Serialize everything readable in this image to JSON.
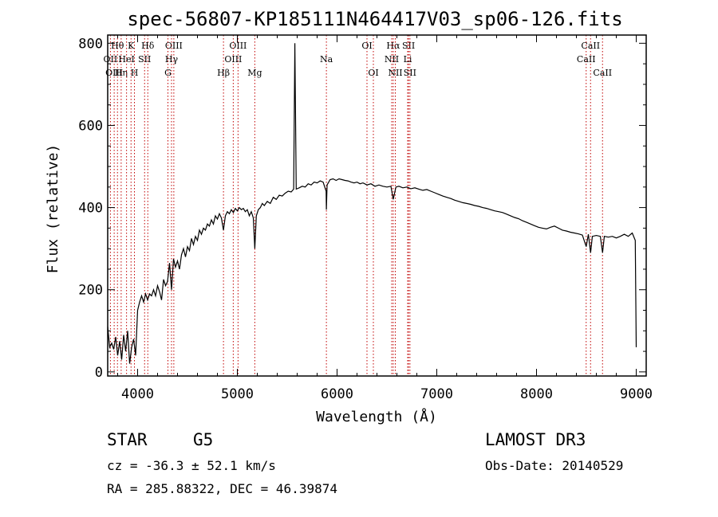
{
  "chart_data": {
    "type": "line",
    "title": "spec-56807-KP185111N464417V03_sp06-126.fits",
    "xlabel": "Wavelength (Å)",
    "ylabel": "Flux (relative)",
    "xlim": [
      3700,
      9100
    ],
    "ylim": [
      -10,
      820
    ],
    "xticks": [
      4000,
      5000,
      6000,
      7000,
      8000,
      9000
    ],
    "yticks": [
      0,
      200,
      400,
      600,
      800
    ],
    "grid": false,
    "series": [
      {
        "name": "spectrum",
        "points": [
          [
            3700,
            110
          ],
          [
            3720,
            60
          ],
          [
            3740,
            70
          ],
          [
            3760,
            55
          ],
          [
            3780,
            85
          ],
          [
            3800,
            40
          ],
          [
            3820,
            75
          ],
          [
            3840,
            30
          ],
          [
            3860,
            90
          ],
          [
            3880,
            50
          ],
          [
            3900,
            100
          ],
          [
            3920,
            20
          ],
          [
            3940,
            60
          ],
          [
            3960,
            80
          ],
          [
            3980,
            40
          ],
          [
            4000,
            150
          ],
          [
            4020,
            170
          ],
          [
            4040,
            185
          ],
          [
            4060,
            170
          ],
          [
            4080,
            190
          ],
          [
            4100,
            175
          ],
          [
            4120,
            190
          ],
          [
            4140,
            185
          ],
          [
            4160,
            200
          ],
          [
            4180,
            185
          ],
          [
            4200,
            210
          ],
          [
            4220,
            195
          ],
          [
            4240,
            175
          ],
          [
            4260,
            225
          ],
          [
            4280,
            210
          ],
          [
            4300,
            220
          ],
          [
            4320,
            265
          ],
          [
            4340,
            200
          ],
          [
            4360,
            275
          ],
          [
            4380,
            255
          ],
          [
            4400,
            270
          ],
          [
            4420,
            250
          ],
          [
            4440,
            285
          ],
          [
            4460,
            300
          ],
          [
            4480,
            280
          ],
          [
            4500,
            305
          ],
          [
            4520,
            295
          ],
          [
            4540,
            325
          ],
          [
            4560,
            310
          ],
          [
            4580,
            330
          ],
          [
            4600,
            320
          ],
          [
            4620,
            345
          ],
          [
            4640,
            335
          ],
          [
            4660,
            350
          ],
          [
            4680,
            345
          ],
          [
            4700,
            360
          ],
          [
            4720,
            355
          ],
          [
            4740,
            370
          ],
          [
            4760,
            360
          ],
          [
            4780,
            380
          ],
          [
            4800,
            372
          ],
          [
            4820,
            385
          ],
          [
            4840,
            375
          ],
          [
            4861,
            345
          ],
          [
            4880,
            380
          ],
          [
            4900,
            390
          ],
          [
            4920,
            385
          ],
          [
            4940,
            395
          ],
          [
            4960,
            388
          ],
          [
            4980,
            398
          ],
          [
            5000,
            392
          ],
          [
            5020,
            400
          ],
          [
            5040,
            395
          ],
          [
            5060,
            398
          ],
          [
            5080,
            390
          ],
          [
            5100,
            395
          ],
          [
            5120,
            380
          ],
          [
            5140,
            390
          ],
          [
            5160,
            375
          ],
          [
            5175,
            300
          ],
          [
            5190,
            380
          ],
          [
            5210,
            395
          ],
          [
            5230,
            400
          ],
          [
            5250,
            410
          ],
          [
            5270,
            405
          ],
          [
            5300,
            415
          ],
          [
            5330,
            410
          ],
          [
            5360,
            425
          ],
          [
            5390,
            420
          ],
          [
            5420,
            430
          ],
          [
            5450,
            428
          ],
          [
            5480,
            435
          ],
          [
            5510,
            440
          ],
          [
            5540,
            438
          ],
          [
            5565,
            445
          ],
          [
            5577,
            800
          ],
          [
            5590,
            445
          ],
          [
            5620,
            448
          ],
          [
            5650,
            452
          ],
          [
            5680,
            450
          ],
          [
            5710,
            458
          ],
          [
            5740,
            455
          ],
          [
            5770,
            462
          ],
          [
            5800,
            460
          ],
          [
            5830,
            465
          ],
          [
            5860,
            462
          ],
          [
            5890,
            440
          ],
          [
            5893,
            395
          ],
          [
            5900,
            455
          ],
          [
            5930,
            468
          ],
          [
            5960,
            470
          ],
          [
            5990,
            466
          ],
          [
            6020,
            470
          ],
          [
            6050,
            468
          ],
          [
            6080,
            466
          ],
          [
            6110,
            465
          ],
          [
            6140,
            462
          ],
          [
            6170,
            460
          ],
          [
            6200,
            462
          ],
          [
            6230,
            458
          ],
          [
            6260,
            460
          ],
          [
            6300,
            455
          ],
          [
            6340,
            458
          ],
          [
            6380,
            452
          ],
          [
            6420,
            455
          ],
          [
            6460,
            452
          ],
          [
            6500,
            450
          ],
          [
            6540,
            452
          ],
          [
            6563,
            420
          ],
          [
            6590,
            450
          ],
          [
            6620,
            452
          ],
          [
            6660,
            448
          ],
          [
            6700,
            450
          ],
          [
            6740,
            446
          ],
          [
            6780,
            448
          ],
          [
            6820,
            445
          ],
          [
            6860,
            442
          ],
          [
            6900,
            444
          ],
          [
            6940,
            440
          ],
          [
            6980,
            436
          ],
          [
            7020,
            432
          ],
          [
            7060,
            428
          ],
          [
            7100,
            425
          ],
          [
            7140,
            422
          ],
          [
            7180,
            418
          ],
          [
            7220,
            415
          ],
          [
            7260,
            412
          ],
          [
            7300,
            410
          ],
          [
            7340,
            408
          ],
          [
            7380,
            405
          ],
          [
            7420,
            403
          ],
          [
            7460,
            400
          ],
          [
            7500,
            398
          ],
          [
            7540,
            395
          ],
          [
            7580,
            392
          ],
          [
            7620,
            390
          ],
          [
            7660,
            388
          ],
          [
            7700,
            384
          ],
          [
            7740,
            380
          ],
          [
            7780,
            376
          ],
          [
            7820,
            373
          ],
          [
            7860,
            368
          ],
          [
            7900,
            364
          ],
          [
            7940,
            360
          ],
          [
            7980,
            356
          ],
          [
            8020,
            352
          ],
          [
            8060,
            350
          ],
          [
            8100,
            348
          ],
          [
            8140,
            352
          ],
          [
            8180,
            355
          ],
          [
            8220,
            350
          ],
          [
            8260,
            345
          ],
          [
            8300,
            343
          ],
          [
            8340,
            340
          ],
          [
            8380,
            338
          ],
          [
            8420,
            336
          ],
          [
            8460,
            333
          ],
          [
            8498,
            305
          ],
          [
            8520,
            335
          ],
          [
            8542,
            290
          ],
          [
            8560,
            330
          ],
          [
            8600,
            332
          ],
          [
            8640,
            330
          ],
          [
            8662,
            290
          ],
          [
            8680,
            330
          ],
          [
            8720,
            328
          ],
          [
            8760,
            330
          ],
          [
            8800,
            326
          ],
          [
            8840,
            330
          ],
          [
            8880,
            335
          ],
          [
            8920,
            330
          ],
          [
            8960,
            338
          ],
          [
            8990,
            320
          ],
          [
            9000,
            60
          ]
        ]
      }
    ],
    "line_markers": [
      {
        "label": "Hθ",
        "wl": 3798,
        "row": 1
      },
      {
        "label": "OII",
        "wl": 3727,
        "row": 2
      },
      {
        "label": "OIII",
        "wl": 3765,
        "row": 3
      },
      {
        "label": "Hη",
        "wl": 3835,
        "row": 3
      },
      {
        "label": "HeI",
        "wl": 3889,
        "row": 2
      },
      {
        "label": "K",
        "wl": 3934,
        "row": 1
      },
      {
        "label": "H",
        "wl": 3968,
        "row": 3
      },
      {
        "label": "SII",
        "wl": 4070,
        "row": 2
      },
      {
        "label": "Hδ",
        "wl": 4102,
        "row": 1
      },
      {
        "label": "OIII",
        "wl": 4363,
        "row": 1
      },
      {
        "label": "Hγ",
        "wl": 4340,
        "row": 2
      },
      {
        "label": "G",
        "wl": 4304,
        "row": 3
      },
      {
        "label": "Hβ",
        "wl": 4861,
        "row": 3
      },
      {
        "label": "OIII",
        "wl": 5007,
        "row": 1
      },
      {
        "label": "OIII",
        "wl": 4959,
        "row": 2
      },
      {
        "label": "Mg",
        "wl": 5175,
        "row": 3
      },
      {
        "label": "Na",
        "wl": 5893,
        "row": 2
      },
      {
        "label": "OI",
        "wl": 6300,
        "row": 1
      },
      {
        "label": "OI",
        "wl": 6364,
        "row": 3
      },
      {
        "label": "Hα",
        "wl": 6563,
        "row": 1
      },
      {
        "label": "NII",
        "wl": 6548,
        "row": 2
      },
      {
        "label": "NII",
        "wl": 6584,
        "row": 3
      },
      {
        "label": "SII",
        "wl": 6717,
        "row": 1
      },
      {
        "label": "Li",
        "wl": 6708,
        "row": 2
      },
      {
        "label": "SII",
        "wl": 6731,
        "row": 3
      },
      {
        "label": "CaII",
        "wl": 8542,
        "row": 1
      },
      {
        "label": "CaII",
        "wl": 8498,
        "row": 2
      },
      {
        "label": "CaII",
        "wl": 8662,
        "row": 3
      }
    ],
    "marker_color": "#c00000"
  },
  "info": {
    "object_class": "STAR",
    "subclass": "G5",
    "survey": "LAMOST DR3",
    "cz": "cz = -36.3 ± 52.1 km/s",
    "obs_date": "Obs-Date: 20140529",
    "coords": "RA = 285.88322, DEC =  46.39874"
  }
}
